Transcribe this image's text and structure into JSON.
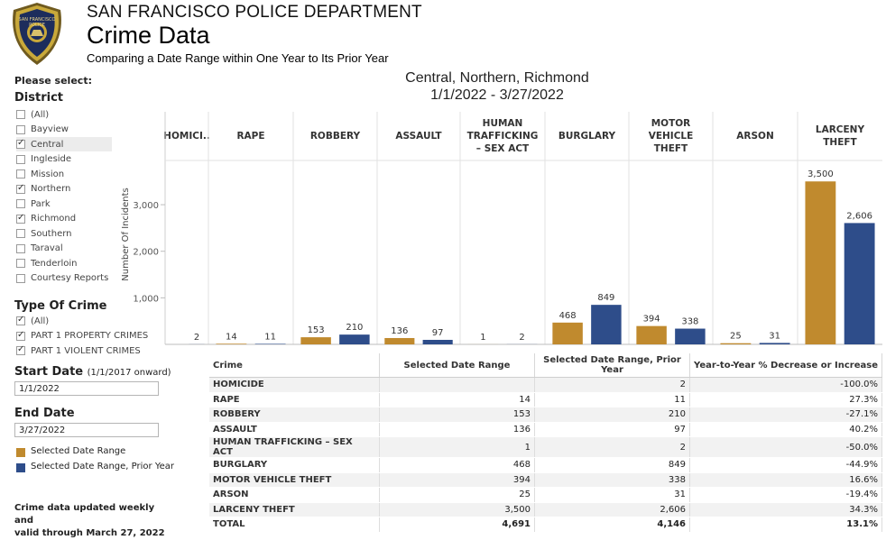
{
  "header": {
    "org": "SAN FRANCISCO POLICE DEPARTMENT",
    "title": "Crime Data",
    "subtitle": "Comparing a Date Range within One Year to Its Prior Year",
    "badge_top_text": "SAN FRANCISCO",
    "badge_mid_text": "POLICE"
  },
  "sidebar": {
    "please_select": "Please select:",
    "district": {
      "title": "District",
      "items": [
        {
          "label": "(All)",
          "checked": false
        },
        {
          "label": "Bayview",
          "checked": false
        },
        {
          "label": "Central",
          "checked": true
        },
        {
          "label": "Ingleside",
          "checked": false
        },
        {
          "label": "Mission",
          "checked": false
        },
        {
          "label": "Northern",
          "checked": true
        },
        {
          "label": "Park",
          "checked": false
        },
        {
          "label": "Richmond",
          "checked": true
        },
        {
          "label": "Southern",
          "checked": false
        },
        {
          "label": "Taraval",
          "checked": false
        },
        {
          "label": "Tenderloin",
          "checked": false
        },
        {
          "label": "Courtesy Reports",
          "checked": false
        }
      ]
    },
    "crime_type": {
      "title": "Type Of Crime",
      "items": [
        {
          "label": "(All)",
          "checked": true
        },
        {
          "label": "PART 1 PROPERTY CRIMES",
          "checked": true
        },
        {
          "label": "PART 1 VIOLENT CRIMES",
          "checked": true
        }
      ]
    },
    "start_date": {
      "title": "Start Date",
      "hint": "(1/1/2017 onward)",
      "value": "1/1/2022"
    },
    "end_date": {
      "title": "End Date",
      "value": "3/27/2022"
    },
    "legend": [
      {
        "label": "Selected Date Range",
        "color": "#C08A2E"
      },
      {
        "label": "Selected Date Range, Prior Year",
        "color": "#2E4D8A"
      }
    ],
    "note_line1": "Crime data updated weekly and",
    "note_line2": "valid through March 27, 2022"
  },
  "chart_data": {
    "type": "bar",
    "title": "Central, Northern, Richmond",
    "subtitle": "1/1/2022 - 3/27/2022",
    "categories": [
      "HOMICIDE",
      "RAPE",
      "ROBBERY",
      "ASSAULT",
      "HUMAN TRAFFICKING – SEX ACT",
      "BURGLARY",
      "MOTOR VEHICLE THEFT",
      "ARSON",
      "LARCENY THEFT"
    ],
    "category_headers": [
      "HOMICI..",
      "RAPE",
      "ROBBERY",
      "ASSAULT",
      "HUMAN TRAFFICKING – SEX ACT",
      "BURGLARY",
      "MOTOR VEHICLE THEFT",
      "ARSON",
      "LARCENY THEFT"
    ],
    "series": [
      {
        "name": "Selected Date Range",
        "color": "#C08A2E",
        "values": [
          0,
          14,
          153,
          136,
          1,
          468,
          394,
          25,
          3500
        ]
      },
      {
        "name": "Selected Date Range, Prior Year",
        "color": "#2E4D8A",
        "values": [
          2,
          11,
          210,
          97,
          2,
          849,
          338,
          31,
          2606
        ]
      }
    ],
    "data_labels": [
      [
        "",
        "2"
      ],
      [
        "14",
        "11"
      ],
      [
        "153",
        "210"
      ],
      [
        "136",
        "97"
      ],
      [
        "1",
        "2"
      ],
      [
        "468",
        "849"
      ],
      [
        "394",
        "338"
      ],
      [
        "25",
        "31"
      ],
      [
        "3,500",
        "2,606"
      ]
    ],
    "ylabel": "Number Of Incidents",
    "yticks": [
      1000,
      2000,
      3000
    ],
    "ytick_labels": [
      "1,000",
      "2,000",
      "3,000"
    ],
    "ylim": [
      0,
      3950
    ],
    "grid": false
  },
  "table": {
    "columns": [
      "Crime",
      "Selected Date Range",
      "Selected Date Range, Prior Year",
      "Year-to-Year % Decrease or Increase"
    ],
    "rows": [
      {
        "crime": "HOMICIDE",
        "selected": "",
        "prior": "2",
        "change": "-100.0%"
      },
      {
        "crime": "RAPE",
        "selected": "14",
        "prior": "11",
        "change": "27.3%"
      },
      {
        "crime": "ROBBERY",
        "selected": "153",
        "prior": "210",
        "change": "-27.1%"
      },
      {
        "crime": "ASSAULT",
        "selected": "136",
        "prior": "97",
        "change": "40.2%"
      },
      {
        "crime": "HUMAN TRAFFICKING – SEX ACT",
        "selected": "1",
        "prior": "2",
        "change": "-50.0%"
      },
      {
        "crime": "BURGLARY",
        "selected": "468",
        "prior": "849",
        "change": "-44.9%"
      },
      {
        "crime": "MOTOR VEHICLE THEFT",
        "selected": "394",
        "prior": "338",
        "change": "16.6%"
      },
      {
        "crime": "ARSON",
        "selected": "25",
        "prior": "31",
        "change": "-19.4%"
      },
      {
        "crime": "LARCENY THEFT",
        "selected": "3,500",
        "prior": "2,606",
        "change": "34.3%"
      }
    ],
    "total": {
      "crime": "TOTAL",
      "selected": "4,691",
      "prior": "4,146",
      "change": "13.1%"
    }
  }
}
